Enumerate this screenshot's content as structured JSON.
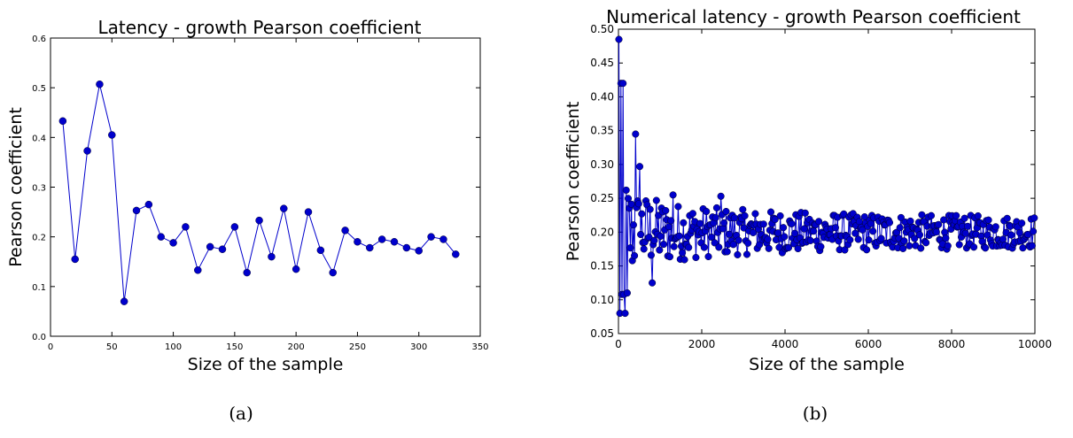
{
  "chart_data": [
    {
      "type": "line",
      "title": "Latency - growth Pearson coefficient",
      "xlabel": "Size of the sample",
      "ylabel": "Pearson coefficient",
      "xlim": [
        0,
        350
      ],
      "ylim": [
        0.0,
        0.6
      ],
      "xticks": [
        "0",
        "50",
        "100",
        "150",
        "200",
        "250",
        "300",
        "350"
      ],
      "yticks": [
        "0.0",
        "0.1",
        "0.2",
        "0.3",
        "0.4",
        "0.5",
        "0.6"
      ],
      "grid": false,
      "marker": "circle",
      "color": "#0000cc",
      "x": [
        10,
        20,
        30,
        40,
        50,
        60,
        70,
        80,
        90,
        100,
        110,
        120,
        130,
        140,
        150,
        160,
        170,
        180,
        190,
        200,
        210,
        220,
        230,
        240,
        250,
        260,
        270,
        280,
        290,
        300,
        310,
        320,
        330
      ],
      "values": [
        0.433,
        0.155,
        0.373,
        0.507,
        0.405,
        0.07,
        0.253,
        0.265,
        0.2,
        0.188,
        0.22,
        0.133,
        0.18,
        0.175,
        0.22,
        0.128,
        0.233,
        0.16,
        0.257,
        0.135,
        0.25,
        0.173,
        0.128,
        0.213,
        0.19,
        0.178,
        0.195,
        0.19,
        0.178,
        0.172,
        0.2,
        0.195,
        0.165
      ]
    },
    {
      "type": "line",
      "title": "Numerical latency - growth Pearson coefficient",
      "xlabel": "Size of the sample",
      "ylabel": "Pearson coefficient",
      "xlim": [
        0,
        10000
      ],
      "ylim": [
        0.05,
        0.5
      ],
      "xticks": [
        "0",
        "2000",
        "4000",
        "6000",
        "8000",
        "10000"
      ],
      "yticks": [
        "0.05",
        "0.10",
        "0.15",
        "0.20",
        "0.25",
        "0.30",
        "0.35",
        "0.40",
        "0.45",
        "0.50"
      ],
      "grid": false,
      "marker": "circle",
      "color": "#0000cc",
      "x_step": 25,
      "x_start": 10,
      "notable_points": [
        {
          "x": 20,
          "y": 0.485
        },
        {
          "x": 60,
          "y": 0.42
        },
        {
          "x": 120,
          "y": 0.42
        },
        {
          "x": 35,
          "y": 0.08
        },
        {
          "x": 160,
          "y": 0.08
        },
        {
          "x": 80,
          "y": 0.108
        },
        {
          "x": 140,
          "y": 0.108
        },
        {
          "x": 200,
          "y": 0.11
        },
        {
          "x": 420,
          "y": 0.345
        },
        {
          "x": 520,
          "y": 0.297
        },
        {
          "x": 820,
          "y": 0.125
        },
        {
          "x": 1300,
          "y": 0.255
        },
        {
          "x": 2450,
          "y": 0.253
        }
      ],
      "converge_value": 0.2
    }
  ],
  "captions": [
    "(a)",
    "(b)"
  ]
}
